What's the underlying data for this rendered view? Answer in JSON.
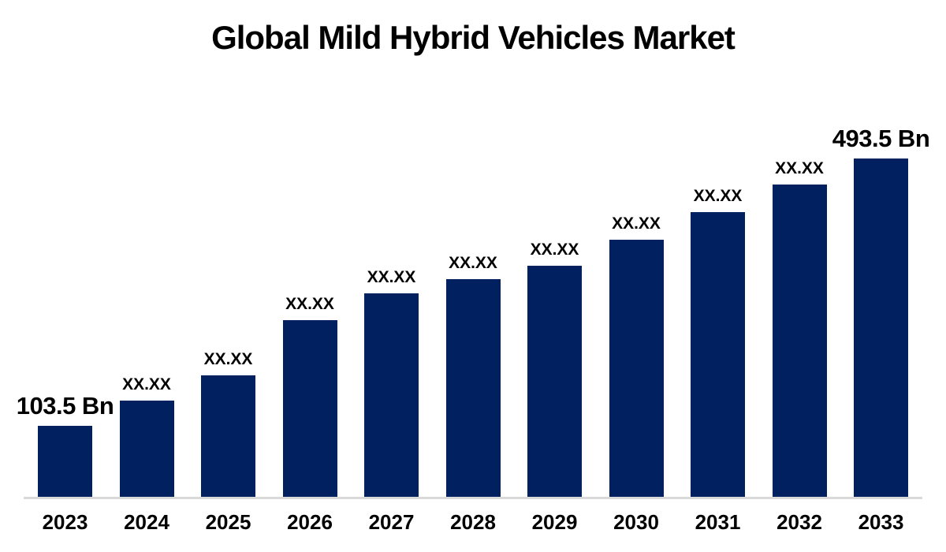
{
  "chart_data": {
    "type": "bar",
    "title": "Global Mild Hybrid Vehicles Market",
    "categories": [
      "2023",
      "2024",
      "2025",
      "2026",
      "2027",
      "2028",
      "2029",
      "2030",
      "2031",
      "2032",
      "2033"
    ],
    "values": [
      103.5,
      140,
      177,
      258,
      297,
      318,
      337,
      375,
      415,
      455,
      493.5
    ],
    "data_labels": [
      "103.5 Bn",
      "XX.XX",
      "XX.XX",
      "XX.XX",
      "XX.XX",
      "XX.XX",
      "XX.XX",
      "XX.XX",
      "XX.XX",
      "XX.XX",
      "493.5 Bn"
    ],
    "unit": "Bn",
    "first_value_label": "103.5 Bn",
    "last_value_label": "493.5 Bn",
    "xlabel": "",
    "ylabel": "",
    "ylim": [
      0,
      493.5
    ],
    "grid": false,
    "legend": false,
    "bar_color": "#002060",
    "axis_color": "#d9d9d9",
    "text_color": "#000000"
  }
}
